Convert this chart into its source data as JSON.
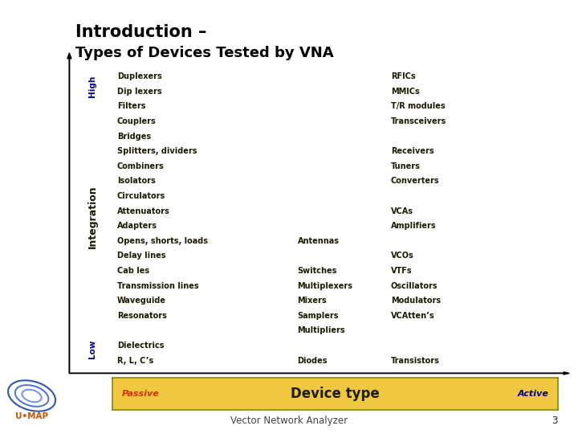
{
  "title_line1": "Introduction –",
  "title_line2": "Types of Devices Tested by VNA",
  "chart_bg": "#F0C840",
  "sidebar_bg": "#E8BE30",
  "box_bg": "#F0C840",
  "left_col": [
    "Duplexers",
    "Dip lexers",
    "Filters",
    "Couplers",
    "Bridges",
    "Splitters, dividers",
    "Combiners",
    "Isolators",
    "Circulators",
    "Attenuators",
    "Adapters",
    "Opens, shorts, loads",
    "Delay lines",
    "Cab les",
    "Transmission lines",
    "Waveguide",
    "Resonators",
    "",
    "Dielectrics",
    "R, L, C’s"
  ],
  "mid_col": [
    "",
    "",
    "",
    "",
    "",
    "",
    "",
    "",
    "",
    "",
    "",
    "Antennas",
    "",
    "Switches",
    "Multiplexers",
    "Mixers",
    "Samplers",
    "Multipliers",
    "",
    "Diodes"
  ],
  "right_col": [
    "RFICs",
    "MMICs",
    "T/R modules",
    "Transceivers",
    "",
    "Receivers",
    "Tuners",
    "Converters",
    "",
    "VCAs",
    "Amplifiers",
    "",
    "VCOs",
    "VTFs",
    "Oscillators",
    "Modulators",
    "VCAtten’s",
    "",
    "",
    "Transistors"
  ],
  "xlabel": "Device type",
  "xlabel_passive": "Passive",
  "xlabel_active": "Active",
  "ylabel": "Integration",
  "ylabel_high": "High",
  "ylabel_low": "Low",
  "footer_text": "Vector Network Analyzer",
  "page_number": "3",
  "font_color": "#1a1a00",
  "high_low_color": "#00008B",
  "passive_color": "#CC3300",
  "active_color": "#000080",
  "title1_fontsize": 15,
  "title2_fontsize": 13,
  "content_fontsize": 7.0,
  "ylabel_fontsize": 9,
  "high_low_fontsize": 7.5,
  "xlabel_fontsize": 12,
  "passive_active_fontsize": 8
}
